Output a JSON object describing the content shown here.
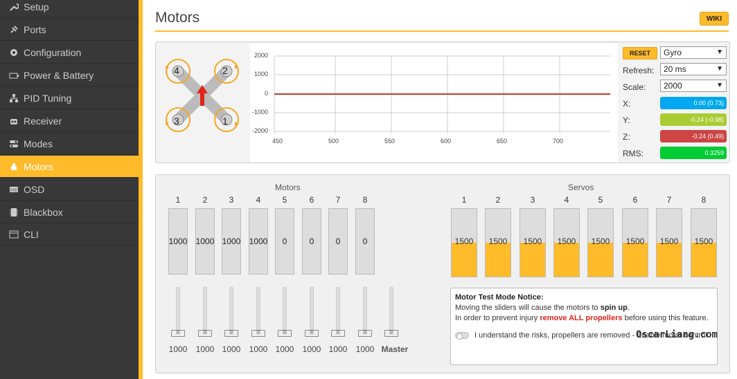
{
  "sidebar": {
    "items": [
      {
        "label": "Setup",
        "icon": "wrench-icon"
      },
      {
        "label": "Ports",
        "icon": "plug-icon"
      },
      {
        "label": "Configuration",
        "icon": "gear-icon"
      },
      {
        "label": "Power & Battery",
        "icon": "battery-icon"
      },
      {
        "label": "PID Tuning",
        "icon": "sliders-icon"
      },
      {
        "label": "Receiver",
        "icon": "receiver-icon"
      },
      {
        "label": "Modes",
        "icon": "toggles-icon"
      },
      {
        "label": "Motors",
        "icon": "motor-icon",
        "active": true
      },
      {
        "label": "OSD",
        "icon": "osd-icon"
      },
      {
        "label": "Blackbox",
        "icon": "blackbox-icon"
      },
      {
        "label": "CLI",
        "icon": "terminal-icon"
      }
    ],
    "accent": "#ffbb2a",
    "background": "#383838"
  },
  "header": {
    "title": "Motors",
    "wiki_label": "WIKI"
  },
  "quad": {
    "motor_labels": [
      "4",
      "2",
      "3",
      "1"
    ]
  },
  "graph": {
    "y_ticks": [
      "2000",
      "1000",
      "0",
      "-1000",
      "-2000"
    ],
    "x_ticks": [
      "450",
      "500",
      "550",
      "600",
      "650",
      "700"
    ]
  },
  "controls": {
    "reset_label": "RESET",
    "sensor_value": "Gyro",
    "refresh_label": "Refresh:",
    "refresh_value": "20 ms",
    "scale_label": "Scale:",
    "scale_value": "2000",
    "x_label": "X:",
    "x_value": "0.00 (0.73)",
    "y_label": "Y:",
    "y_value": "-0.24 (-0.98)",
    "z_label": "Z:",
    "z_value": "-0.24 (0.49)",
    "rms_label": "RMS:",
    "rms_value": "0.3259",
    "colors": {
      "x": "#00a8f0",
      "y": "#aacc33",
      "z": "#cc4444",
      "rms": "#00cc33"
    }
  },
  "motors": {
    "title": "Motors",
    "numbers": [
      "1",
      "2",
      "3",
      "4",
      "5",
      "6",
      "7",
      "8"
    ],
    "values": [
      "1000",
      "1000",
      "1000",
      "1000",
      "0",
      "0",
      "0",
      "0"
    ],
    "slider_values": [
      "1000",
      "1000",
      "1000",
      "1000",
      "1000",
      "1000",
      "1000",
      "1000"
    ],
    "master_label": "Master"
  },
  "servos": {
    "title": "Servos",
    "numbers": [
      "1",
      "2",
      "3",
      "4",
      "5",
      "6",
      "7",
      "8"
    ],
    "values": [
      "1500",
      "1500",
      "1500",
      "1500",
      "1500",
      "1500",
      "1500",
      "1500"
    ]
  },
  "notice": {
    "title": "Motor Test Mode Notice:",
    "line1_a": "Moving the sliders will cause the motors to ",
    "line1_b": "spin up",
    "line1_c": ".",
    "line2_a": "In order to prevent injury ",
    "line2_b": "remove ALL propellers",
    "line2_c": " before using this feature.",
    "toggle_text": "I understand the risks, propellers are removed - Enable motor control."
  },
  "watermark": "OscarLiang.com"
}
